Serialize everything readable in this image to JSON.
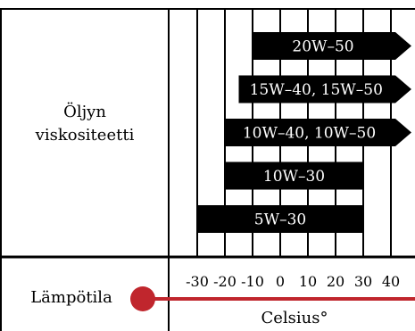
{
  "colors": {
    "ink": "#000000",
    "bar_text": "#ffffff",
    "thermometer": "#c0262d",
    "background": "#ffffff"
  },
  "left_panel": {
    "viscosity_line1": "Öljyn",
    "viscosity_line2": "viskositeetti",
    "temperature_label": "Lämpötila"
  },
  "axis": {
    "unit_label": "Celsius°",
    "min": -30,
    "max": 40,
    "step": 10,
    "ticks": [
      {
        "value": -30,
        "label": "-30"
      },
      {
        "value": -20,
        "label": "-20"
      },
      {
        "value": -10,
        "label": "-10"
      },
      {
        "value": 0,
        "label": "0"
      },
      {
        "value": 10,
        "label": "10"
      },
      {
        "value": 20,
        "label": "20"
      },
      {
        "value": 30,
        "label": "30"
      },
      {
        "value": 40,
        "label": "40"
      }
    ]
  },
  "grades": [
    {
      "label": "20W–50",
      "from": -10,
      "to": 40,
      "open_end": true
    },
    {
      "label": "15W–40, 15W–50",
      "from": -15,
      "to": 40,
      "open_end": true
    },
    {
      "label": "10W–40, 10W–50",
      "from": -20,
      "to": 40,
      "open_end": true
    },
    {
      "label": "10W–30",
      "from": -20,
      "to": 30,
      "open_end": false
    },
    {
      "label": "5W–30",
      "from": -30,
      "to": 30,
      "open_end": false
    }
  ]
}
